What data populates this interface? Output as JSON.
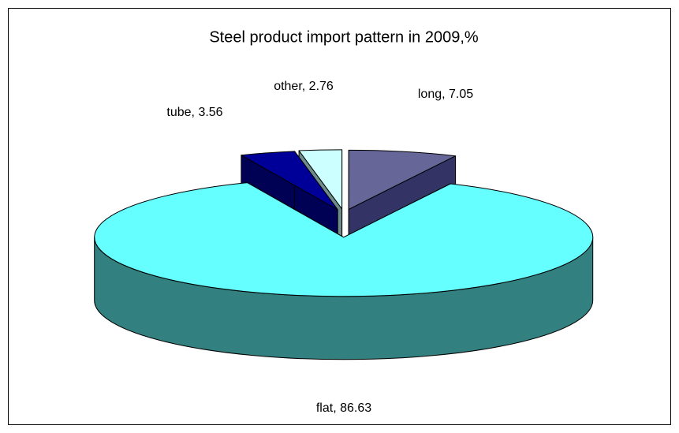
{
  "chart_data": {
    "type": "pie",
    "title": "Steel product import pattern in 2009,%",
    "values": [
      7.05,
      86.63,
      3.56,
      2.76
    ],
    "value_labels": [
      "long, 7.05",
      "flat, 86.63",
      "tube, 3.56",
      "other, 2.76"
    ],
    "colors": [
      "#666699",
      "#66ffff",
      "#000099",
      "#ccffff"
    ],
    "side_colors": [
      "#333366",
      "#338080",
      "#000055",
      "#6f8c8c"
    ]
  }
}
